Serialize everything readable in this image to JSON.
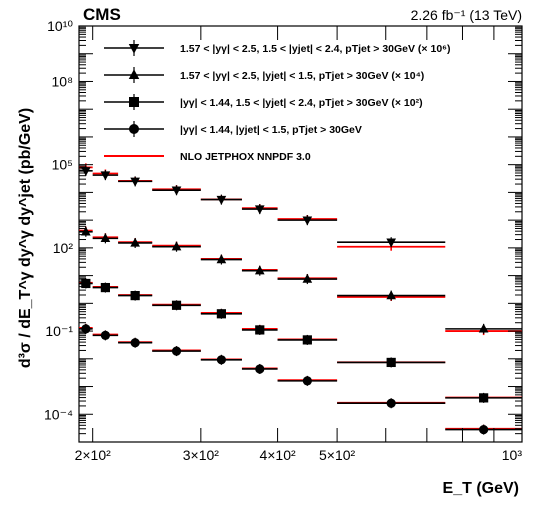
{
  "chart_data": {
    "type": "scatter",
    "experiment_label": "CMS",
    "lumi_label": "2.26 fb⁻¹ (13 TeV)",
    "xlabel": "E_T (GeV)",
    "ylabel": "d³σ / dE_T^γ dy^γ dy^jet (pb/GeV)",
    "x_scale": "log",
    "y_scale": "log",
    "xlim": [
      190,
      1000
    ],
    "ylim": [
      1e-05,
      10000000000
    ],
    "x_ticks": [
      {
        "value": 200,
        "label": "2×10²"
      },
      {
        "value": 300,
        "label": "3×10²"
      },
      {
        "value": 400,
        "label": "4×10²"
      },
      {
        "value": 500,
        "label": "5×10²"
      },
      {
        "value": 1000,
        "label": "10³"
      }
    ],
    "y_ticks": [
      {
        "value": 0.0001,
        "label": "10⁻⁴"
      },
      {
        "value": 0.1,
        "label": "10⁻¹"
      },
      {
        "value": 100,
        "label": "10²"
      },
      {
        "value": 100000,
        "label": "10⁵"
      },
      {
        "value": 100000000,
        "label": "10⁸"
      },
      {
        "value": 10000000000,
        "label": "10¹⁰"
      }
    ],
    "bin_edges": [
      190,
      200,
      220,
      250,
      300,
      350,
      400,
      500,
      750,
      1000
    ],
    "series": [
      {
        "name": "1.57 < |yγ| < 2.5, 1.5 < |yjet| < 2.4, pTjet > 30GeV (× 10⁶)",
        "marker": "triangle-down",
        "values": [
          60000,
          42000,
          25000,
          12000,
          5500,
          2500,
          1000,
          160,
          0
        ],
        "theory": [
          80000,
          48000,
          26000,
          13000,
          5600,
          2700,
          1100,
          110,
          0
        ]
      },
      {
        "name": "1.57 < |yγ| < 2.5, |yjet| < 1.5, pTjet > 30GeV (× 10⁴)",
        "marker": "triangle-up",
        "values": [
          380,
          220,
          150,
          110,
          38,
          15,
          7.5,
          1.9,
          0.12
        ],
        "theory": [
          420,
          240,
          160,
          120,
          40,
          16,
          8,
          1.7,
          0.1
        ]
      },
      {
        "name": "|yγ| < 1.44, 1.5 < |yjet| < 2.4, pTjet > 30GeV (× 10²)",
        "marker": "square",
        "values": [
          5.2,
          3.7,
          1.9,
          0.85,
          0.42,
          0.11,
          0.048,
          0.0074,
          0.00039
        ],
        "theory": [
          5.5,
          3.9,
          2.0,
          0.9,
          0.45,
          0.12,
          0.05,
          0.0075,
          0.0004
        ]
      },
      {
        "name": "|yγ| < 1.44, |yjet| < 1.5, pTjet > 30GeV",
        "marker": "circle",
        "values": [
          0.12,
          0.07,
          0.038,
          0.019,
          0.0092,
          0.0043,
          0.0016,
          0.00025,
          2.8e-05
        ],
        "theory": [
          0.13,
          0.075,
          0.04,
          0.02,
          0.0095,
          0.0045,
          0.0017,
          0.00026,
          3e-05
        ]
      },
      {
        "name": "NLO JETPHOX NNPDF 3.0",
        "marker": "line"
      }
    ],
    "legend_position": "top-left",
    "grid": false,
    "colors": {
      "data": "#000000",
      "theory": "#ff0000"
    }
  }
}
